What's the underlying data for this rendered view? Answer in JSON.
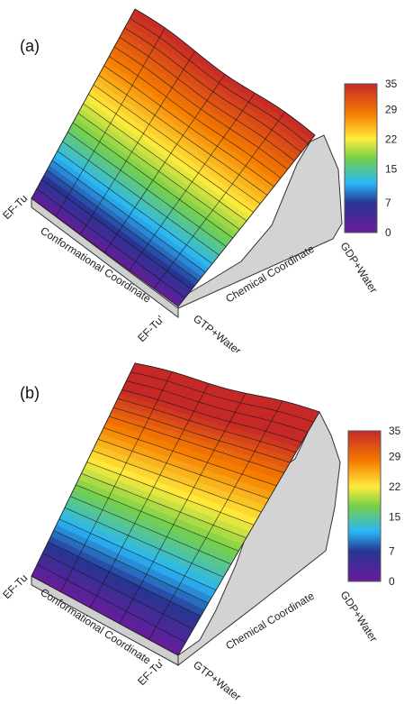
{
  "chart_data": [
    {
      "type": "surface3d",
      "panel_label": "(a)",
      "x_axis": {
        "label": "Conformational Coordinate",
        "start_label": "EF-Tu",
        "end_label": "EF-Tu'"
      },
      "y_axis": {
        "label": "Chemical Coordinate",
        "start_label": "GTP+Water",
        "end_label": "GDP+Water"
      },
      "colorbar": {
        "min": 0,
        "max": 35,
        "ticks": [
          0,
          7,
          15,
          22,
          29,
          35
        ]
      }
    },
    {
      "type": "surface3d",
      "panel_label": "(b)",
      "x_axis": {
        "label": "Conformational Coordinate",
        "start_label": "EF-Tu",
        "end_label": "EF-Tu'"
      },
      "y_axis": {
        "label": "Chemical Coordinate",
        "start_label": "GTP+Water",
        "end_label": "GDP+Water"
      },
      "colorbar": {
        "min": 0,
        "max": 35,
        "ticks": [
          0,
          7,
          15,
          22,
          29,
          35
        ]
      }
    }
  ],
  "colors": {
    "side_wall": "#d3d3d3",
    "wall_edge": "#333333",
    "mesh": "#1a1a1a"
  }
}
